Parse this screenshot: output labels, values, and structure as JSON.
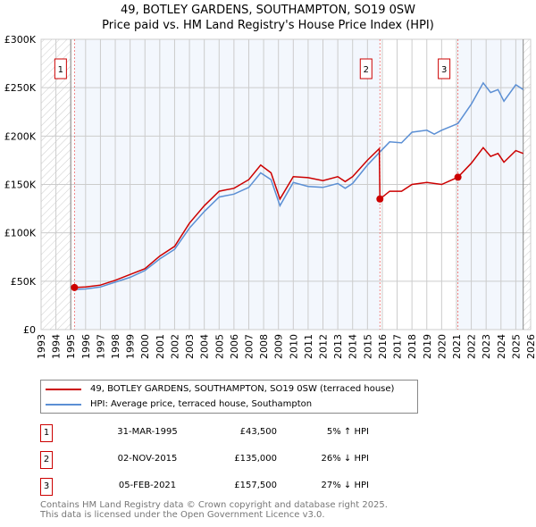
{
  "title_line1": "49, BOTLEY GARDENS, SOUTHAMPTON, SO19 0SW",
  "title_line2": "Price paid vs. HM Land Registry's House Price Index (HPI)",
  "chart_data": {
    "type": "line",
    "title": "49, BOTLEY GARDENS, SOUTHAMPTON, SO19 0SW — Price paid vs. HM Land Registry's House Price Index (HPI)",
    "xlim": [
      1993,
      2026
    ],
    "ylim": [
      0,
      300000
    ],
    "x_ticks": [
      "1993",
      "1994",
      "1995",
      "1996",
      "1997",
      "1998",
      "1999",
      "2000",
      "2001",
      "2002",
      "2003",
      "2004",
      "2005",
      "2006",
      "2007",
      "2008",
      "2009",
      "2010",
      "2011",
      "2012",
      "2013",
      "2014",
      "2015",
      "2016",
      "2017",
      "2018",
      "2019",
      "2020",
      "2021",
      "2022",
      "2023",
      "2024",
      "2025",
      "2026"
    ],
    "y_ticks": [
      {
        "v": 0,
        "label": "£0"
      },
      {
        "v": 50000,
        "label": "£50K"
      },
      {
        "v": 100000,
        "label": "£100K"
      },
      {
        "v": 150000,
        "label": "£150K"
      },
      {
        "v": 200000,
        "label": "£200K"
      },
      {
        "v": 250000,
        "label": "£250K"
      },
      {
        "v": 300000,
        "label": "£300K"
      }
    ],
    "grid": true,
    "series": [
      {
        "name": "49, BOTLEY GARDENS, SOUTHAMPTON, SO19 0SW (terraced house)",
        "color": "#cc0000",
        "x": [
          1995.25,
          1996,
          1997,
          1998,
          1999,
          2000,
          2001,
          2002,
          2003,
          2004,
          2005,
          2006,
          2007,
          2007.8,
          2008.5,
          2009.1,
          2010,
          2011,
          2012,
          2013,
          2013.5,
          2014,
          2015,
          2015.8,
          2015.84,
          2016.5,
          2017.3,
          2018,
          2019,
          2020,
          2021.1,
          2022,
          2022.8,
          2023.3,
          2023.8,
          2024.2,
          2025,
          2025.5
        ],
        "y": [
          43500,
          44000,
          46000,
          51000,
          57000,
          63000,
          76000,
          86000,
          110000,
          128000,
          143000,
          146000,
          155000,
          170000,
          162000,
          135000,
          158000,
          157000,
          154000,
          158000,
          153000,
          158000,
          175000,
          187000,
          135000,
          143000,
          143000,
          150000,
          152000,
          150000,
          157500,
          172000,
          188000,
          179000,
          182000,
          173000,
          185000,
          182000
        ]
      },
      {
        "name": "HPI: Average price, terraced house, Southampton",
        "color": "#5b8fd4",
        "x": [
          1995.25,
          1996,
          1997,
          1998,
          1999,
          2000,
          2001,
          2002,
          2003,
          2004,
          2005,
          2006,
          2007,
          2007.8,
          2008.5,
          2009.1,
          2010,
          2011,
          2012,
          2013,
          2013.5,
          2014,
          2015,
          2015.8,
          2016.5,
          2017.3,
          2018,
          2019,
          2019.5,
          2020,
          2021.1,
          2022,
          2022.8,
          2023.3,
          2023.8,
          2024.2,
          2025,
          2025.5
        ],
        "y": [
          41500,
          42000,
          44000,
          49000,
          54000,
          61000,
          73000,
          83000,
          105000,
          122000,
          137000,
          140000,
          147000,
          162000,
          155000,
          128000,
          152000,
          148000,
          147000,
          151000,
          146000,
          151000,
          170000,
          183000,
          194000,
          193000,
          204000,
          206000,
          202000,
          206000,
          213000,
          233000,
          255000,
          245000,
          248000,
          236000,
          253000,
          248000
        ]
      }
    ],
    "sales": [
      {
        "label": "1",
        "date": "31-MAR-1995",
        "x": 1995.25,
        "price": "£43,500",
        "value": 43500,
        "hpi": "5% ↑ HPI"
      },
      {
        "label": "2",
        "date": "02-NOV-2015",
        "x": 2015.84,
        "price": "£135,000",
        "value": 135000,
        "hpi": "26% ↓ HPI"
      },
      {
        "label": "3",
        "date": "05-FEB-2021",
        "x": 2021.1,
        "price": "£157,500",
        "value": 157500,
        "hpi": "27% ↓ HPI"
      }
    ],
    "data_end": 2025.5
  },
  "legend": {
    "property": "49, BOTLEY GARDENS, SOUTHAMPTON, SO19 0SW (terraced house)",
    "hpi": "HPI: Average price, terraced house, Southampton"
  },
  "footer": {
    "line1": "Contains HM Land Registry data © Crown copyright and database right 2025.",
    "line2": "This data is licensed under the Open Government Licence v3.0."
  }
}
